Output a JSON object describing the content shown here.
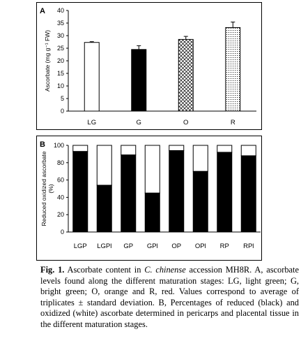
{
  "chart_data": [
    {
      "panel": "A",
      "type": "bar",
      "ylabel": "Ascorbate (mg g⁻¹ FW)",
      "ylim": [
        0,
        40
      ],
      "yticks": [
        0,
        5,
        10,
        15,
        20,
        25,
        30,
        35,
        40
      ],
      "categories": [
        "LG",
        "G",
        "O",
        "R"
      ],
      "values": [
        27.3,
        24.5,
        28.5,
        33.2
      ],
      "errors": [
        0.3,
        1.5,
        1.2,
        2.2
      ],
      "fills": [
        "white",
        "black",
        "crosshatch",
        "dotted"
      ],
      "grid": false
    },
    {
      "panel": "B",
      "type": "bar",
      "stacked": true,
      "ylabel": "Reduced oxidized ascorbate (%)",
      "ylim": [
        0,
        100
      ],
      "yticks": [
        0,
        20,
        40,
        60,
        80,
        100
      ],
      "categories": [
        "LGP",
        "LGPl",
        "GP",
        "GPl",
        "OP",
        "OPl",
        "RP",
        "RPl"
      ],
      "series": [
        {
          "values": [
            93,
            54,
            89,
            45,
            94,
            70,
            92,
            88
          ],
          "color": "#000000"
        },
        {
          "values": [
            7,
            46,
            11,
            55,
            6,
            30,
            8,
            12
          ],
          "color": "#ffffff"
        }
      ],
      "grid": false
    }
  ],
  "caption": {
    "fig_label": "Fig. 1.",
    "text_1": " Ascorbate content in ",
    "species": "C. chinense",
    "text_2": " accession MH8R. A, ascorbate levels found along the different maturation stages: LG, light green; G, bright green; O, orange and R, red. Values correspond to average of triplicates ± standard deviation. B, Percentages of reduced (black) and oxidized (white) ascorbate determined in pericarps and placental tissue in the different maturation stages."
  }
}
